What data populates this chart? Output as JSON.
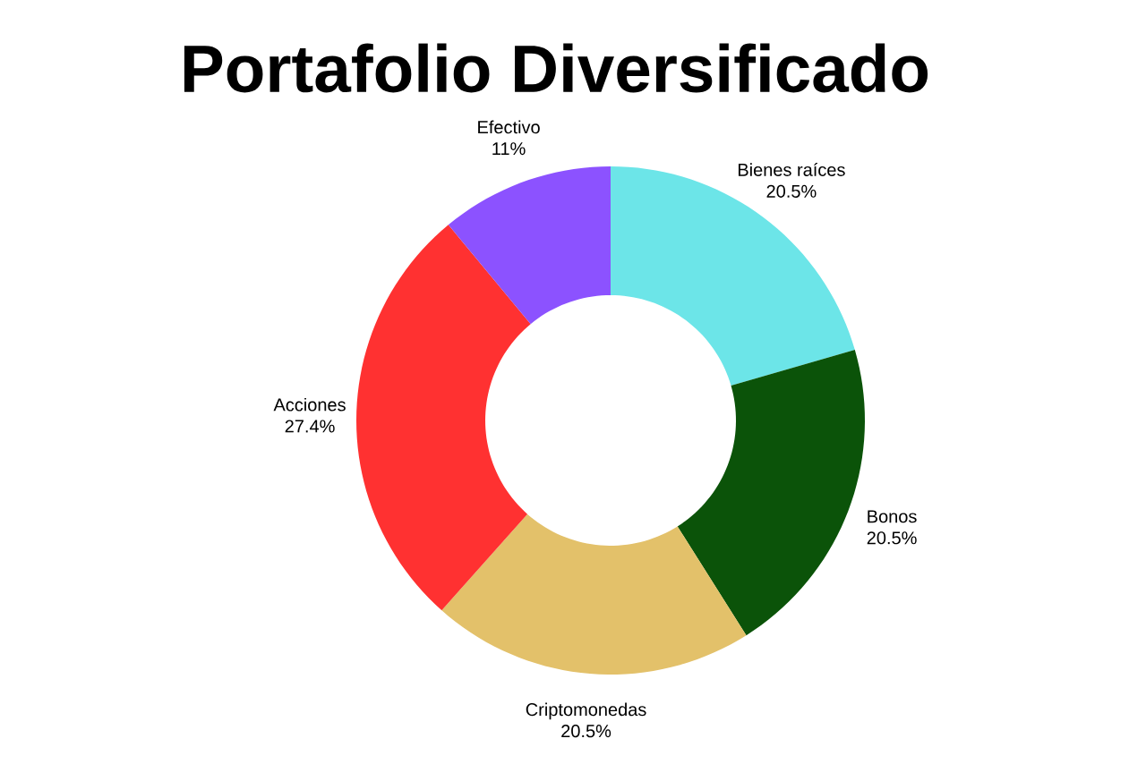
{
  "chart_data": {
    "type": "donut",
    "title": "Portafolio Diversificado",
    "categories": [
      "Bienes raíces",
      "Bonos",
      "Criptomonedas",
      "Acciones",
      "Efectivo"
    ],
    "values": [
      20.5,
      20.5,
      20.5,
      27.4,
      11
    ],
    "value_labels": [
      "20.5%",
      "20.5%",
      "20.5%",
      "27.4%",
      "11%"
    ],
    "colors": [
      "#6ce5e8",
      "#0b5309",
      "#e3c16a",
      "#ff3131",
      "#8c52ff"
    ]
  }
}
